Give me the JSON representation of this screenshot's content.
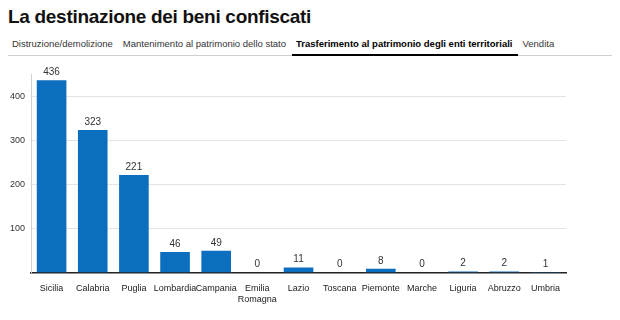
{
  "tabs": [
    "Distruzione/demolizione",
    "Mantenimento al patrimonio dello stato",
    "Trasferimento al patrimonio degli enti territoriali",
    "Vendita"
  ],
  "active_tab": "Trasferimento al patrimonio degli enti territoriali",
  "chart_data": {
    "type": "bar",
    "title": "La destinazione dei beni confiscati",
    "categories": [
      "Sicilia",
      "Calabria",
      "Puglia",
      "Lombardia",
      "Campania",
      "Emilia Romagna",
      "Lazio",
      "Toscana",
      "Piemonte",
      "Marche",
      "Liguria",
      "Abruzzo",
      "Umbria"
    ],
    "values": [
      436,
      323,
      221,
      46,
      49,
      0,
      11,
      0,
      8,
      0,
      2,
      2,
      1
    ],
    "color": "#0b6ebf",
    "ylim": [
      0,
      450
    ],
    "yticks": [
      100,
      200,
      300,
      400
    ],
    "grid": true,
    "data_labels": true
  }
}
